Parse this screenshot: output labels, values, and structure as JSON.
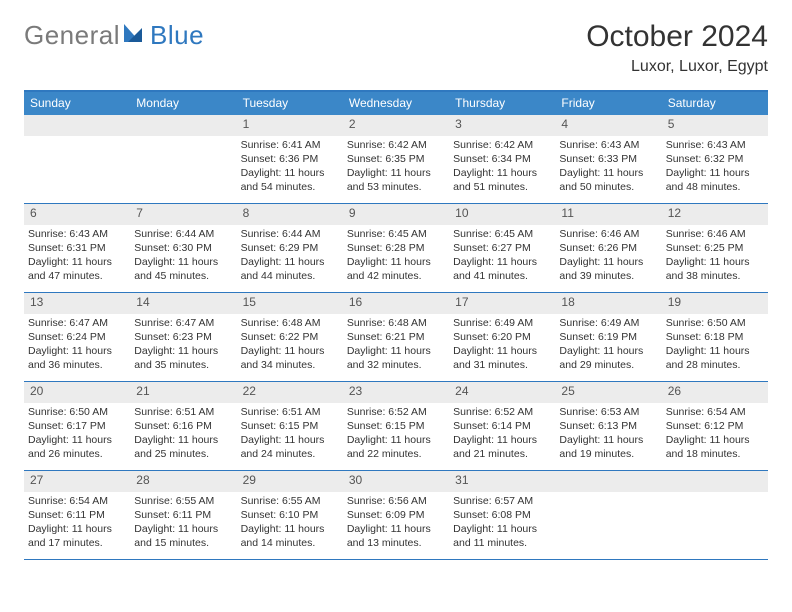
{
  "logo": {
    "text1": "General",
    "text2": "Blue"
  },
  "title": "October 2024",
  "location": "Luxor, Luxor, Egypt",
  "colors": {
    "accent": "#3b87c8",
    "border": "#2f78bf",
    "daynum_bg": "#ececec",
    "text": "#333333"
  },
  "dow": [
    "Sunday",
    "Monday",
    "Tuesday",
    "Wednesday",
    "Thursday",
    "Friday",
    "Saturday"
  ],
  "weeks": [
    [
      {
        "n": "",
        "sr": "",
        "ss": "",
        "dl": ""
      },
      {
        "n": "",
        "sr": "",
        "ss": "",
        "dl": ""
      },
      {
        "n": "1",
        "sr": "6:41 AM",
        "ss": "6:36 PM",
        "dl": "11 hours and 54 minutes."
      },
      {
        "n": "2",
        "sr": "6:42 AM",
        "ss": "6:35 PM",
        "dl": "11 hours and 53 minutes."
      },
      {
        "n": "3",
        "sr": "6:42 AM",
        "ss": "6:34 PM",
        "dl": "11 hours and 51 minutes."
      },
      {
        "n": "4",
        "sr": "6:43 AM",
        "ss": "6:33 PM",
        "dl": "11 hours and 50 minutes."
      },
      {
        "n": "5",
        "sr": "6:43 AM",
        "ss": "6:32 PM",
        "dl": "11 hours and 48 minutes."
      }
    ],
    [
      {
        "n": "6",
        "sr": "6:43 AM",
        "ss": "6:31 PM",
        "dl": "11 hours and 47 minutes."
      },
      {
        "n": "7",
        "sr": "6:44 AM",
        "ss": "6:30 PM",
        "dl": "11 hours and 45 minutes."
      },
      {
        "n": "8",
        "sr": "6:44 AM",
        "ss": "6:29 PM",
        "dl": "11 hours and 44 minutes."
      },
      {
        "n": "9",
        "sr": "6:45 AM",
        "ss": "6:28 PM",
        "dl": "11 hours and 42 minutes."
      },
      {
        "n": "10",
        "sr": "6:45 AM",
        "ss": "6:27 PM",
        "dl": "11 hours and 41 minutes."
      },
      {
        "n": "11",
        "sr": "6:46 AM",
        "ss": "6:26 PM",
        "dl": "11 hours and 39 minutes."
      },
      {
        "n": "12",
        "sr": "6:46 AM",
        "ss": "6:25 PM",
        "dl": "11 hours and 38 minutes."
      }
    ],
    [
      {
        "n": "13",
        "sr": "6:47 AM",
        "ss": "6:24 PM",
        "dl": "11 hours and 36 minutes."
      },
      {
        "n": "14",
        "sr": "6:47 AM",
        "ss": "6:23 PM",
        "dl": "11 hours and 35 minutes."
      },
      {
        "n": "15",
        "sr": "6:48 AM",
        "ss": "6:22 PM",
        "dl": "11 hours and 34 minutes."
      },
      {
        "n": "16",
        "sr": "6:48 AM",
        "ss": "6:21 PM",
        "dl": "11 hours and 32 minutes."
      },
      {
        "n": "17",
        "sr": "6:49 AM",
        "ss": "6:20 PM",
        "dl": "11 hours and 31 minutes."
      },
      {
        "n": "18",
        "sr": "6:49 AM",
        "ss": "6:19 PM",
        "dl": "11 hours and 29 minutes."
      },
      {
        "n": "19",
        "sr": "6:50 AM",
        "ss": "6:18 PM",
        "dl": "11 hours and 28 minutes."
      }
    ],
    [
      {
        "n": "20",
        "sr": "6:50 AM",
        "ss": "6:17 PM",
        "dl": "11 hours and 26 minutes."
      },
      {
        "n": "21",
        "sr": "6:51 AM",
        "ss": "6:16 PM",
        "dl": "11 hours and 25 minutes."
      },
      {
        "n": "22",
        "sr": "6:51 AM",
        "ss": "6:15 PM",
        "dl": "11 hours and 24 minutes."
      },
      {
        "n": "23",
        "sr": "6:52 AM",
        "ss": "6:15 PM",
        "dl": "11 hours and 22 minutes."
      },
      {
        "n": "24",
        "sr": "6:52 AM",
        "ss": "6:14 PM",
        "dl": "11 hours and 21 minutes."
      },
      {
        "n": "25",
        "sr": "6:53 AM",
        "ss": "6:13 PM",
        "dl": "11 hours and 19 minutes."
      },
      {
        "n": "26",
        "sr": "6:54 AM",
        "ss": "6:12 PM",
        "dl": "11 hours and 18 minutes."
      }
    ],
    [
      {
        "n": "27",
        "sr": "6:54 AM",
        "ss": "6:11 PM",
        "dl": "11 hours and 17 minutes."
      },
      {
        "n": "28",
        "sr": "6:55 AM",
        "ss": "6:11 PM",
        "dl": "11 hours and 15 minutes."
      },
      {
        "n": "29",
        "sr": "6:55 AM",
        "ss": "6:10 PM",
        "dl": "11 hours and 14 minutes."
      },
      {
        "n": "30",
        "sr": "6:56 AM",
        "ss": "6:09 PM",
        "dl": "11 hours and 13 minutes."
      },
      {
        "n": "31",
        "sr": "6:57 AM",
        "ss": "6:08 PM",
        "dl": "11 hours and 11 minutes."
      },
      {
        "n": "",
        "sr": "",
        "ss": "",
        "dl": ""
      },
      {
        "n": "",
        "sr": "",
        "ss": "",
        "dl": ""
      }
    ]
  ],
  "labels": {
    "sunrise": "Sunrise:",
    "sunset": "Sunset:",
    "daylight": "Daylight:"
  }
}
